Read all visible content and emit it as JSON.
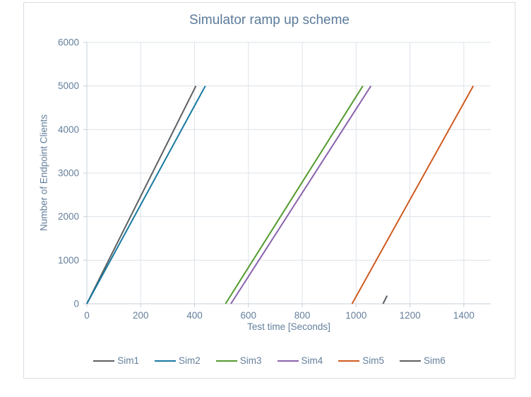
{
  "colors": {
    "background": "#ffffff",
    "frame_border": "#d8dee4",
    "title_text": "#5b7b9b",
    "axis_text": "#647f9c",
    "gridline": "#dde3ea",
    "axis_line": "#c6d0d9"
  },
  "chart_data": {
    "type": "line",
    "title": "Simulator ramp up scheme",
    "xlabel": "Test time [Seconds]",
    "ylabel": "Number of Endpoint Clients",
    "xlim": [
      0,
      1500
    ],
    "ylim": [
      0,
      6000
    ],
    "x_ticks": [
      0,
      200,
      400,
      600,
      800,
      1000,
      1200,
      1400
    ],
    "y_ticks": [
      0,
      1000,
      2000,
      3000,
      4000,
      5000,
      6000
    ],
    "grid": true,
    "legend_position": "bottom",
    "series": [
      {
        "name": "Sim1",
        "color": "#5d6063",
        "points": [
          [
            0,
            0
          ],
          [
            405,
            5000
          ]
        ]
      },
      {
        "name": "Sim2",
        "color": "#1879a0",
        "points": [
          [
            0,
            0
          ],
          [
            440,
            5000
          ]
        ]
      },
      {
        "name": "Sim3",
        "color": "#539a2d",
        "points": [
          [
            515,
            0
          ],
          [
            1025,
            5000
          ]
        ]
      },
      {
        "name": "Sim4",
        "color": "#8a62ad",
        "points": [
          [
            535,
            0
          ],
          [
            1055,
            5000
          ]
        ]
      },
      {
        "name": "Sim5",
        "color": "#d05a20",
        "points": [
          [
            985,
            0
          ],
          [
            1435,
            5000
          ]
        ]
      },
      {
        "name": "Sim6",
        "color": "#5d6063",
        "points": [
          [
            1100,
            0
          ],
          [
            1115,
            185
          ]
        ]
      }
    ]
  }
}
